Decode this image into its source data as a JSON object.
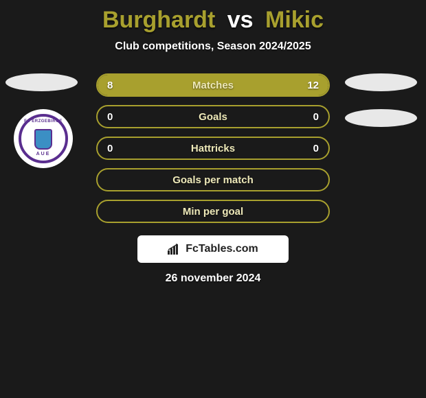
{
  "title": {
    "player1": "Burghardt",
    "vs": "vs",
    "player2": "Mikic",
    "player1_color": "#a8a02e",
    "player2_color": "#a8a02e"
  },
  "subtitle": "Club competitions, Season 2024/2025",
  "rows": [
    {
      "label": "Matches",
      "left": "8",
      "right": "12",
      "left_pct": 40,
      "right_pct": 60,
      "show_vals": true
    },
    {
      "label": "Goals",
      "left": "0",
      "right": "0",
      "left_pct": 0,
      "right_pct": 0,
      "show_vals": true
    },
    {
      "label": "Hattricks",
      "left": "0",
      "right": "0",
      "left_pct": 0,
      "right_pct": 0,
      "show_vals": true
    },
    {
      "label": "Goals per match",
      "left": "",
      "right": "",
      "left_pct": 0,
      "right_pct": 0,
      "show_vals": false
    },
    {
      "label": "Min per goal",
      "left": "",
      "right": "",
      "left_pct": 0,
      "right_pct": 0,
      "show_vals": false
    }
  ],
  "style": {
    "row_border_color": "#a8a02e",
    "row_bg_empty": "transparent",
    "fill_left_color": "#a8a02e",
    "fill_right_color": "#a8a02e",
    "label_color": "#ede8b8",
    "value_color": "#ffffff",
    "oval_bg": "#e8e8e8"
  },
  "club": {
    "text_top": "FC ERZGEBIRGE",
    "text_bottom": "AUE"
  },
  "footer": {
    "brand": "FcTables.com",
    "date": "26 november 2024"
  }
}
